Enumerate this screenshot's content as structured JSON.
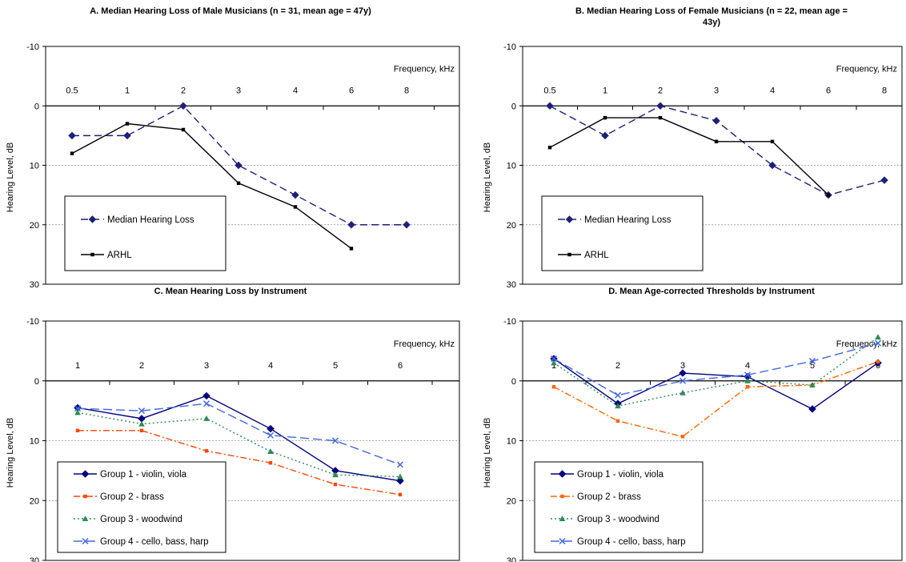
{
  "chart_data": [
    {
      "id": "A",
      "type": "line",
      "title_lines": [
        "A.  Median Hearing Loss of Male Musicians (n = 31, mean age = 47y)"
      ],
      "ylabel": "Hearing Level, dB",
      "xlabel": "Frequency, kHz",
      "categories": [
        "0.5",
        "1",
        "2",
        "3",
        "4",
        "6",
        "8"
      ],
      "ylim": [
        -10,
        30
      ],
      "yticks": [
        "-10",
        "0",
        "10",
        "20",
        "30"
      ],
      "y_inverted": true,
      "grid": true,
      "legend_position": "bottom-left",
      "series": [
        {
          "name": "Median Hearing Loss",
          "color": "#1f1f7a",
          "style": "dash",
          "marker": "diamond",
          "values": [
            5,
            5,
            0,
            10,
            15,
            20,
            20
          ]
        },
        {
          "name": "ARHL",
          "color": "#000000",
          "style": "solid",
          "marker": "square",
          "values": [
            8,
            3,
            4,
            13,
            17,
            24,
            null
          ]
        }
      ]
    },
    {
      "id": "B",
      "type": "line",
      "title_lines": [
        "B.  Median Hearing Loss of Female Musicians (n = 22, mean age =",
        "43y)"
      ],
      "ylabel": "Hearing Level, dB",
      "xlabel": "Frequency, kHz",
      "categories": [
        "0.5",
        "1",
        "2",
        "3",
        "4",
        "6",
        "8"
      ],
      "ylim": [
        -10,
        30
      ],
      "yticks": [
        "-10",
        "0",
        "10",
        "20",
        "30"
      ],
      "y_inverted": true,
      "grid": true,
      "legend_position": "bottom-left",
      "series": [
        {
          "name": "Median Hearing Loss",
          "color": "#1f1f7a",
          "style": "dash",
          "marker": "diamond",
          "values": [
            0,
            5,
            0,
            2.5,
            10,
            15,
            12.5
          ]
        },
        {
          "name": "ARHL",
          "color": "#000000",
          "style": "solid",
          "marker": "square",
          "values": [
            7,
            2,
            2,
            6,
            6,
            15,
            null
          ]
        }
      ]
    },
    {
      "id": "C",
      "type": "line",
      "title_lines": [
        "C.  Mean Hearing Loss by Instrument"
      ],
      "ylabel": "Hearing Level, dB",
      "xlabel": "Frequency, kHz",
      "categories": [
        "1",
        "2",
        "3",
        "4",
        "5",
        "6"
      ],
      "ylim": [
        -10,
        30
      ],
      "yticks": [
        "-10",
        "0",
        "10",
        "20",
        "30"
      ],
      "y_inverted": true,
      "grid": true,
      "legend_position": "bottom-left",
      "series": [
        {
          "name": "Group 1 - violin, viola",
          "color": "#000080",
          "style": "solid",
          "marker": "diamond",
          "values": [
            4.5,
            6.3,
            2.5,
            8.0,
            15.0,
            16.7
          ]
        },
        {
          "name": "Group 2 - brass",
          "color": "#ff4500",
          "style": "dashdot",
          "marker": "square",
          "values": [
            8.3,
            8.3,
            11.7,
            13.7,
            17.3,
            19.0
          ]
        },
        {
          "name": "Group 3 - woodwind",
          "color": "#2e8b57",
          "style": "dot",
          "marker": "triangle",
          "values": [
            5.3,
            7.2,
            6.3,
            11.8,
            15.7,
            16.0
          ]
        },
        {
          "name": "Group 4 - cello, bass, harp",
          "color": "#4169e1",
          "style": "longdash",
          "marker": "x",
          "values": [
            4.6,
            5.0,
            3.8,
            9.1,
            10.0,
            14.0
          ]
        }
      ]
    },
    {
      "id": "D",
      "type": "line",
      "title_lines": [
        "D.  Mean Age-corrected Thresholds by Instrument"
      ],
      "ylabel": "Hearing Level, dB",
      "xlabel": "Frequency, kHz",
      "categories": [
        "1",
        "2",
        "3",
        "4",
        "5",
        "6"
      ],
      "ylim": [
        -10,
        30
      ],
      "yticks": [
        "-10",
        "0",
        "10",
        "20",
        "30"
      ],
      "y_inverted": true,
      "grid": true,
      "legend_position": "bottom-left",
      "series": [
        {
          "name": "Group 1 - violin, viola",
          "color": "#000080",
          "style": "solid",
          "marker": "diamond",
          "values": [
            -3.7,
            3.8,
            -1.3,
            -0.7,
            4.7,
            -3.0
          ]
        },
        {
          "name": "Group 2 - brass",
          "color": "#ff6600",
          "style": "dashdot",
          "marker": "square",
          "values": [
            1.0,
            6.7,
            9.3,
            1.0,
            0.7,
            -3.2
          ]
        },
        {
          "name": "Group 3 - woodwind",
          "color": "#2e8b57",
          "style": "dot",
          "marker": "triangle",
          "values": [
            -3.0,
            4.2,
            2.0,
            0.0,
            0.7,
            -7.3
          ]
        },
        {
          "name": "Group 4 - cello, bass, harp",
          "color": "#4169e1",
          "style": "longdash",
          "marker": "x",
          "values": [
            -3.7,
            2.4,
            0.0,
            -1.0,
            -3.3,
            -6.3
          ]
        }
      ]
    }
  ]
}
